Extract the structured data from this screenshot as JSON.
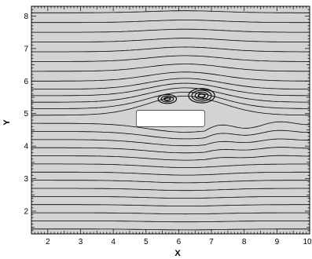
{
  "chart_data": {
    "type": "streamline-contour",
    "xlabel": "X",
    "ylabel": "Y",
    "xlim": [
      1.5,
      10.0
    ],
    "ylim": [
      1.3,
      8.3
    ],
    "x_ticks": [
      "2",
      "3",
      "4",
      "5",
      "6",
      "7",
      "8",
      "9",
      "10"
    ],
    "y_ticks": [
      "2",
      "3",
      "4",
      "5",
      "6",
      "7",
      "8"
    ],
    "x_tick_values": [
      2,
      3,
      4,
      5,
      6,
      7,
      8,
      9,
      10
    ],
    "y_tick_values": [
      2,
      3,
      4,
      5,
      6,
      7,
      8
    ],
    "background_color": "#d3d3d3",
    "line_color": "#000000",
    "obstacle": {
      "x": [
        4.7,
        6.8
      ],
      "y": [
        4.6,
        5.1
      ],
      "color": "#ffffff"
    },
    "streamline_y_values": [
      1.45,
      1.7,
      1.95,
      2.2,
      2.45,
      2.7,
      2.95,
      3.2,
      3.45,
      3.7,
      3.95,
      4.2,
      4.45,
      4.7,
      4.95,
      5.15,
      5.35,
      5.55,
      5.75,
      6.0,
      6.3,
      6.6,
      6.9,
      7.2,
      7.5,
      7.8,
      8.1
    ],
    "vortices": [
      {
        "x": 5.65,
        "y": 5.45,
        "rx": 0.28,
        "ry": 0.14,
        "rings": 3
      },
      {
        "x": 6.7,
        "y": 5.55,
        "rx": 0.4,
        "ry": 0.22,
        "rings": 4
      }
    ]
  }
}
